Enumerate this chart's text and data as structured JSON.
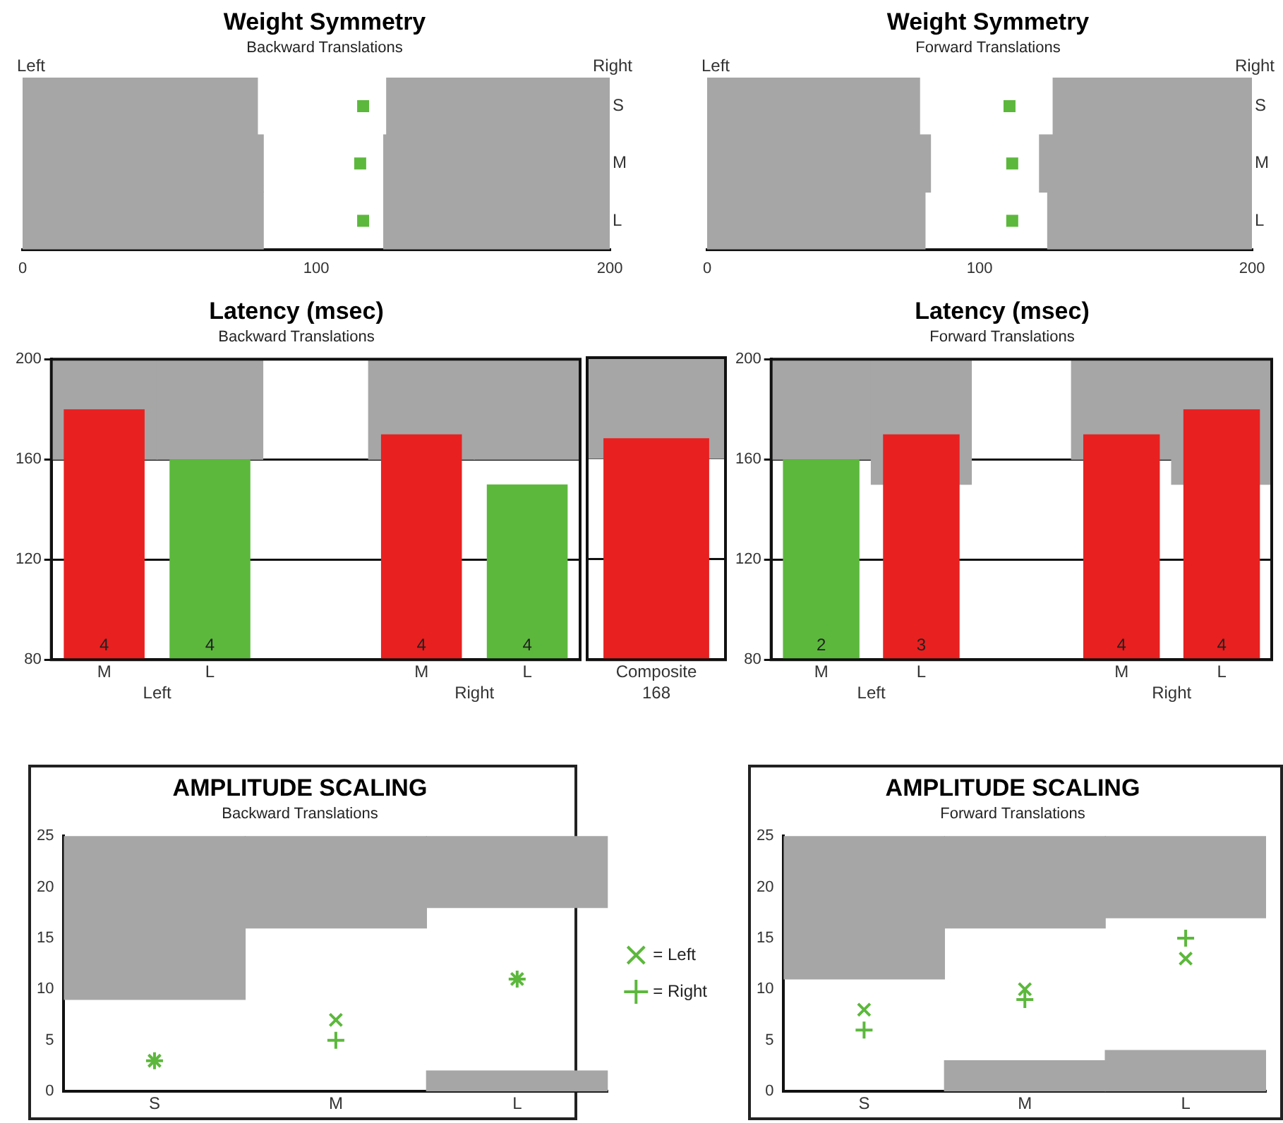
{
  "chart_data": [
    {
      "type": "scatter",
      "title": "Weight Symmetry",
      "subtitle": "Backward Translations",
      "orientation": "horizontal",
      "categories": [
        "S",
        "M",
        "L"
      ],
      "xlim": [
        0,
        200
      ],
      "xticks": [
        0,
        100,
        200
      ],
      "annotations": [
        "Left",
        "Right"
      ],
      "marker": "square",
      "series": [
        {
          "type": "bar",
          "color": "#a6a6a6",
          "base": [
            0,
            0,
            0
          ],
          "values": [
            80,
            82,
            82
          ]
        },
        {
          "type": "bar",
          "color": "#a6a6a6",
          "base": [
            124,
            123,
            123
          ],
          "values": [
            76,
            77,
            77
          ]
        },
        {
          "color": "#5cb83c",
          "values": [
            116,
            115,
            116
          ]
        }
      ]
    },
    {
      "type": "scatter",
      "title": "Weight Symmetry",
      "subtitle": "Forward Translations",
      "orientation": "horizontal",
      "categories": [
        "S",
        "M",
        "L"
      ],
      "xlim": [
        0,
        200
      ],
      "xticks": [
        0,
        100,
        200
      ],
      "annotations": [
        "Left",
        "Right"
      ],
      "marker": "square",
      "series": [
        {
          "type": "bar",
          "color": "#a6a6a6",
          "base": [
            0,
            0,
            0
          ],
          "values": [
            78,
            82,
            80
          ]
        },
        {
          "type": "bar",
          "color": "#a6a6a6",
          "base": [
            127,
            122,
            125
          ],
          "values": [
            73,
            78,
            75
          ]
        },
        {
          "color": "#5cb83c",
          "values": [
            111,
            112,
            112
          ]
        }
      ]
    },
    {
      "type": "bar",
      "title": "Latency (msec)",
      "subtitle": "Backward Translations",
      "categories": [
        "M",
        "L",
        null,
        "M",
        "L"
      ],
      "ylim": [
        80,
        200
      ],
      "yticks": [
        80,
        120,
        160,
        200
      ],
      "grid": "y",
      "annotations": [
        "Left",
        "Right",
        "4",
        "4",
        "4",
        "4"
      ],
      "series": [
        {
          "color": "#a6a6a6",
          "base": [
            160,
            160,
            null,
            160,
            160
          ],
          "values": [
            40,
            40,
            null,
            40,
            40
          ]
        },
        {
          "colors": [
            "#e82020",
            "#5cb83c",
            null,
            "#e82020",
            "#5cb83c"
          ],
          "values": [
            180,
            160,
            null,
            170,
            150
          ]
        }
      ]
    },
    {
      "type": "bar",
      "categories": [
        "Composite"
      ],
      "ylim": [
        80,
        200
      ],
      "yticks": [
        80,
        120,
        160,
        200
      ],
      "grid": "y",
      "tick_labels": "x",
      "series": [
        {
          "color": "#a6a6a6",
          "base": [
            160
          ],
          "values": [
            40
          ]
        },
        {
          "color": "#e82020",
          "values": [
            168
          ],
          "value_labels": [
            "168"
          ]
        }
      ]
    },
    {
      "type": "bar",
      "title": "Latency (msec)",
      "subtitle": "Forward Translations",
      "categories": [
        "M",
        "L",
        null,
        "M",
        "L"
      ],
      "ylim": [
        80,
        200
      ],
      "yticks": [
        80,
        120,
        160,
        200
      ],
      "grid": "y",
      "annotations": [
        "Left",
        "Right",
        "2",
        "3",
        "4",
        "4"
      ],
      "series": [
        {
          "color": "#a6a6a6",
          "base": [
            160,
            150,
            null,
            160,
            150
          ],
          "values": [
            40,
            50,
            null,
            40,
            50
          ]
        },
        {
          "colors": [
            "#5cb83c",
            "#e82020",
            null,
            "#e82020",
            "#e82020"
          ],
          "values": [
            160,
            170,
            null,
            170,
            180
          ]
        }
      ]
    },
    {
      "type": "scatter",
      "title": "AMPLITUDE SCALING",
      "subtitle": "Backward Translations",
      "categories": [
        "S",
        "M",
        "L"
      ],
      "ylim": [
        0,
        25
      ],
      "yticks": [
        0,
        5,
        10,
        15,
        20,
        25
      ],
      "legend": "right",
      "series": [
        {
          "type": "bar",
          "color": "#a6a6a6",
          "base": [
            9,
            16,
            18
          ],
          "values": [
            16,
            9,
            7
          ]
        },
        {
          "type": "bar",
          "color": "#a6a6a6",
          "base": [
            null,
            null,
            0
          ],
          "values": [
            null,
            null,
            2
          ]
        },
        {
          "name": "= Left",
          "marker": "x",
          "color": "#5cb83c",
          "values": [
            3,
            7,
            11
          ]
        },
        {
          "name": "= Right",
          "marker": "plus",
          "color": "#5cb83c",
          "values": [
            3,
            5,
            11
          ]
        }
      ]
    },
    {
      "type": "scatter",
      "title": "AMPLITUDE SCALING",
      "subtitle": "Forward Translations",
      "categories": [
        "S",
        "M",
        "L"
      ],
      "ylim": [
        0,
        25
      ],
      "yticks": [
        0,
        5,
        10,
        15,
        20,
        25
      ],
      "series": [
        {
          "type": "bar",
          "color": "#a6a6a6",
          "base": [
            11,
            16,
            17
          ],
          "values": [
            14,
            9,
            8
          ]
        },
        {
          "type": "bar",
          "color": "#a6a6a6",
          "base": [
            null,
            0,
            0
          ],
          "values": [
            null,
            3,
            4
          ]
        },
        {
          "marker": "x",
          "color": "#5cb83c",
          "values": [
            8,
            10,
            13
          ]
        },
        {
          "marker": "plus",
          "color": "#5cb83c",
          "values": [
            6,
            9,
            15
          ]
        }
      ]
    }
  ]
}
